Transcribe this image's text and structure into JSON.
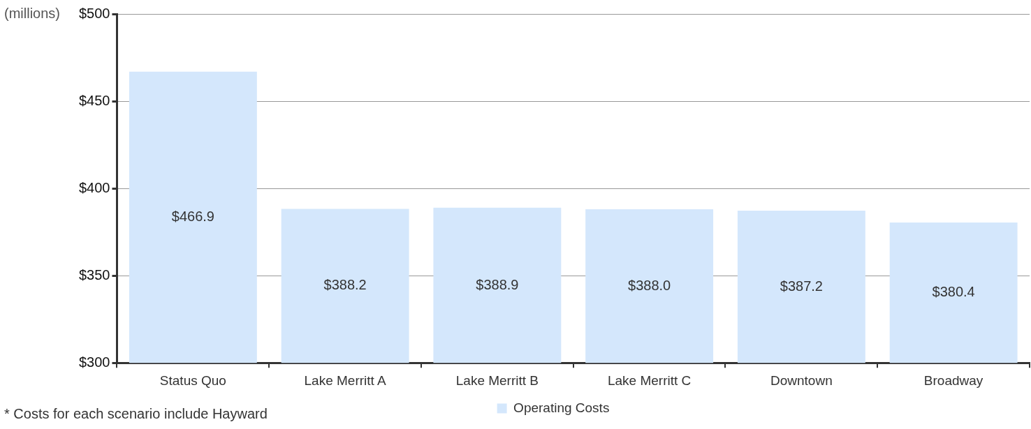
{
  "chart_data": {
    "type": "bar",
    "ylabel": "(millions)",
    "categories": [
      "Status Quo",
      "Lake Merritt A",
      "Lake Merritt B",
      "Lake Merritt C",
      "Downtown",
      "Broadway"
    ],
    "series": [
      {
        "name": "Operating Costs",
        "color": "#d4e7fc",
        "values": [
          466.9,
          388.2,
          388.9,
          388.0,
          387.2,
          380.4
        ],
        "value_labels": [
          "$466.9",
          "$388.2",
          "$388.9",
          "$388.0",
          "$387.2",
          "$380.4"
        ]
      }
    ],
    "ylim": [
      300,
      500
    ],
    "yticks": [
      {
        "value": 300,
        "label": "$300"
      },
      {
        "value": 350,
        "label": "$350"
      },
      {
        "value": 400,
        "label": "$400"
      },
      {
        "value": 450,
        "label": "$450"
      },
      {
        "value": 500,
        "label": "$500"
      }
    ],
    "grid": "y",
    "legend": "bottom",
    "annotations": [
      "* Costs for each scenario include Hayward"
    ]
  }
}
